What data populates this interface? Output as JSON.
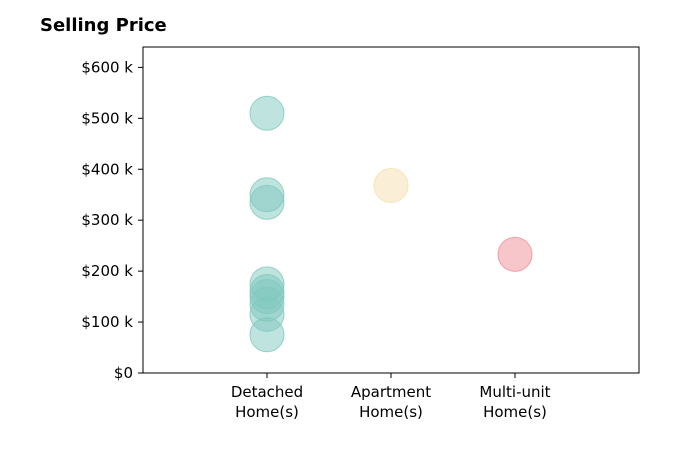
{
  "chart_data": {
    "type": "scatter",
    "title": "Selling Price",
    "xlabel": "",
    "ylabel": "",
    "categories": [
      "Detached\nHome(s)",
      "Apartment\nHome(s)",
      "Multi-unit\nHome(s)"
    ],
    "xlim": [
      -1,
      3
    ],
    "ylim": [
      0,
      640000
    ],
    "yticks": [
      0,
      100000,
      200000,
      300000,
      400000,
      500000,
      600000
    ],
    "ytick_labels": [
      "$0",
      "$100 k",
      "$200 k",
      "$300 k",
      "$400 k",
      "$500 k",
      "$600 k"
    ],
    "grid": false,
    "series": [
      {
        "category": "Detached\nHome(s)",
        "color": "#7fc8bd",
        "values": [
          510000,
          350000,
          335000,
          175000,
          160000,
          150000,
          135000,
          115000,
          75000
        ]
      },
      {
        "category": "Apartment\nHome(s)",
        "color": "#f5dfae",
        "values": [
          368000
        ]
      },
      {
        "category": "Multi-unit\nHome(s)",
        "color": "#f08e95",
        "values": [
          233000
        ]
      }
    ]
  }
}
